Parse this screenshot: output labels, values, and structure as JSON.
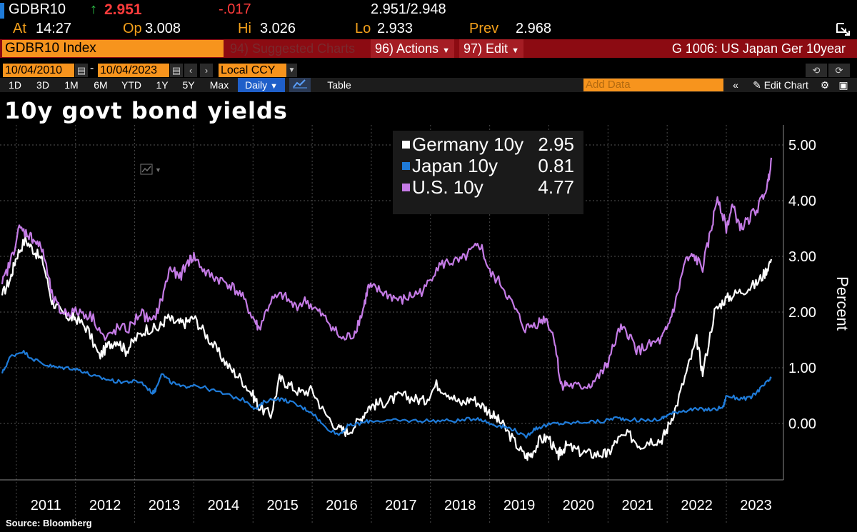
{
  "ticker": {
    "symbol": "GDBR10",
    "arrow": "↑",
    "last": "2.951",
    "change": "-.017",
    "bid_ask": "2.951/2.948",
    "at_label": "At",
    "time": "14:27",
    "open_label": "Op",
    "open": "3.008",
    "high_label": "Hi",
    "high": "3.026",
    "low_label": "Lo",
    "low": "2.933",
    "prev_label": "Prev",
    "prev": "2.968"
  },
  "toolbar": {
    "index_name": "GDBR10 Index",
    "suggested": "94) Suggested Charts",
    "actions": "96) Actions",
    "edit": "97) Edit",
    "chart_name": "G 1006: US Japan Ger 10year",
    "start_date": "10/04/2010",
    "end_date": "10/04/2023",
    "currency": "Local CCY",
    "periods": [
      "1D",
      "3D",
      "1M",
      "6M",
      "YTD",
      "1Y",
      "5Y",
      "Max"
    ],
    "frequency": "Daily",
    "table_label": "Table",
    "add_data_placeholder": "Add Data",
    "edit_chart": "Edit Chart"
  },
  "colors": {
    "germany": "#ffffff",
    "japan": "#1f7bd8",
    "us": "#c57be6",
    "accent": "#f7941d",
    "bar_red": "#8c0b12"
  },
  "chart_data": {
    "type": "line",
    "title": "10y govt bond yields",
    "ylabel": "Percent",
    "xlabel": "",
    "ylim": [
      -1.0,
      5.3
    ],
    "yticks": [
      "5.00",
      "4.00",
      "3.00",
      "2.00",
      "1.00",
      "0.00"
    ],
    "ytick_values": [
      5,
      4,
      3,
      2,
      1,
      0
    ],
    "xticks": [
      "2011",
      "2012",
      "2013",
      "2014",
      "2015",
      "2016",
      "2017",
      "2018",
      "2019",
      "2020",
      "2021",
      "2022",
      "2023"
    ],
    "xlim": [
      2010.76,
      2023.76
    ],
    "legend_position": "top-center",
    "series": [
      {
        "name": "Germany 10y",
        "last": "2.95",
        "color": "#ffffff",
        "x": [
          2010.76,
          2010.9,
          2011.0,
          2011.15,
          2011.3,
          2011.45,
          2011.6,
          2011.75,
          2011.9,
          2012.0,
          2012.2,
          2012.4,
          2012.55,
          2012.7,
          2012.85,
          2013.0,
          2013.2,
          2013.4,
          2013.55,
          2013.7,
          2013.85,
          2014.0,
          2014.2,
          2014.4,
          2014.6,
          2014.8,
          2015.0,
          2015.1,
          2015.3,
          2015.45,
          2015.6,
          2015.8,
          2016.0,
          2016.2,
          2016.45,
          2016.6,
          2016.8,
          2016.95,
          2017.1,
          2017.3,
          2017.5,
          2017.7,
          2017.9,
          2018.1,
          2018.3,
          2018.5,
          2018.7,
          2018.9,
          2019.05,
          2019.2,
          2019.4,
          2019.6,
          2019.7,
          2019.85,
          2020.0,
          2020.15,
          2020.2,
          2020.3,
          2020.5,
          2020.7,
          2020.9,
          2021.0,
          2021.15,
          2021.35,
          2021.55,
          2021.7,
          2021.9,
          2022.0,
          2022.15,
          2022.35,
          2022.5,
          2022.6,
          2022.8,
          2022.95,
          2023.1,
          2023.3,
          2023.5,
          2023.65,
          2023.76
        ],
        "values": [
          2.3,
          2.6,
          3.0,
          3.3,
          3.1,
          2.9,
          2.2,
          2.0,
          1.9,
          1.9,
          1.7,
          1.2,
          1.4,
          1.5,
          1.3,
          1.5,
          1.7,
          1.7,
          1.9,
          1.8,
          1.8,
          1.9,
          1.6,
          1.3,
          1.0,
          0.8,
          0.5,
          0.3,
          0.15,
          0.8,
          0.7,
          0.55,
          0.6,
          0.2,
          -0.1,
          -0.15,
          0.05,
          0.3,
          0.35,
          0.4,
          0.5,
          0.45,
          0.4,
          0.7,
          0.55,
          0.35,
          0.45,
          0.3,
          0.15,
          0.0,
          -0.3,
          -0.6,
          -0.55,
          -0.3,
          -0.25,
          -0.6,
          -0.5,
          -0.4,
          -0.5,
          -0.55,
          -0.55,
          -0.55,
          -0.3,
          -0.2,
          -0.4,
          -0.3,
          -0.3,
          -0.1,
          0.3,
          1.0,
          1.5,
          0.9,
          2.0,
          2.2,
          2.3,
          2.4,
          2.5,
          2.7,
          2.95
        ]
      },
      {
        "name": "Japan 10y",
        "last": "0.81",
        "color": "#1f7bd8",
        "x": [
          2010.76,
          2010.9,
          2011.1,
          2011.3,
          2011.5,
          2011.7,
          2011.9,
          2012.1,
          2012.3,
          2012.5,
          2012.7,
          2012.9,
          2013.1,
          2013.3,
          2013.35,
          2013.45,
          2013.6,
          2013.8,
          2014.0,
          2014.3,
          2014.6,
          2014.9,
          2015.05,
          2015.2,
          2015.4,
          2015.6,
          2015.8,
          2016.0,
          2016.2,
          2016.45,
          2016.6,
          2016.8,
          2017.0,
          2017.3,
          2017.6,
          2017.9,
          2018.2,
          2018.5,
          2018.8,
          2019.0,
          2019.2,
          2019.4,
          2019.6,
          2019.75,
          2019.9,
          2020.1,
          2020.3,
          2020.6,
          2020.9,
          2021.1,
          2021.3,
          2021.6,
          2021.9,
          2022.0,
          2022.2,
          2022.4,
          2022.6,
          2022.8,
          2022.95,
          2023.0,
          2023.2,
          2023.4,
          2023.55,
          2023.7,
          2023.76
        ],
        "values": [
          0.9,
          1.2,
          1.3,
          1.15,
          1.05,
          1.0,
          1.0,
          0.95,
          0.85,
          0.8,
          0.75,
          0.75,
          0.75,
          0.55,
          0.6,
          0.9,
          0.75,
          0.65,
          0.7,
          0.6,
          0.5,
          0.4,
          0.25,
          0.4,
          0.45,
          0.4,
          0.3,
          0.2,
          -0.05,
          -0.2,
          -0.05,
          0.0,
          0.05,
          0.05,
          0.05,
          0.05,
          0.05,
          0.05,
          0.1,
          0.0,
          -0.05,
          -0.1,
          -0.25,
          -0.1,
          -0.05,
          0.0,
          0.0,
          0.03,
          0.03,
          0.1,
          0.08,
          0.05,
          0.08,
          0.15,
          0.22,
          0.25,
          0.25,
          0.25,
          0.3,
          0.5,
          0.45,
          0.45,
          0.6,
          0.75,
          0.81
        ]
      },
      {
        "name": "U.S. 10y",
        "last": "4.77",
        "color": "#c57be6",
        "x": [
          2010.76,
          2010.9,
          2011.05,
          2011.2,
          2011.3,
          2011.45,
          2011.6,
          2011.75,
          2011.9,
          2012.1,
          2012.3,
          2012.5,
          2012.7,
          2012.9,
          2013.1,
          2013.3,
          2013.45,
          2013.6,
          2013.75,
          2013.9,
          2014.0,
          2014.2,
          2014.4,
          2014.6,
          2014.8,
          2015.0,
          2015.1,
          2015.3,
          2015.5,
          2015.7,
          2015.9,
          2016.1,
          2016.3,
          2016.5,
          2016.7,
          2016.85,
          2016.95,
          2017.1,
          2017.3,
          2017.5,
          2017.7,
          2017.9,
          2018.1,
          2018.3,
          2018.5,
          2018.7,
          2018.85,
          2019.0,
          2019.2,
          2019.4,
          2019.6,
          2019.8,
          2019.95,
          2020.1,
          2020.2,
          2020.3,
          2020.5,
          2020.7,
          2020.9,
          2021.0,
          2021.2,
          2021.35,
          2021.5,
          2021.7,
          2021.9,
          2022.0,
          2022.15,
          2022.3,
          2022.45,
          2022.6,
          2022.75,
          2022.85,
          2023.0,
          2023.1,
          2023.25,
          2023.4,
          2023.55,
          2023.7,
          2023.76
        ],
        "values": [
          2.5,
          2.9,
          3.5,
          3.4,
          3.3,
          3.1,
          2.3,
          2.0,
          2.0,
          2.0,
          1.9,
          1.5,
          1.7,
          1.7,
          2.0,
          1.8,
          2.2,
          2.8,
          2.6,
          2.9,
          3.0,
          2.7,
          2.6,
          2.5,
          2.3,
          1.9,
          1.7,
          2.2,
          2.3,
          2.1,
          2.2,
          2.0,
          1.8,
          1.5,
          1.6,
          2.0,
          2.45,
          2.4,
          2.3,
          2.2,
          2.3,
          2.4,
          2.8,
          2.9,
          2.9,
          3.1,
          3.2,
          2.7,
          2.5,
          2.1,
          1.7,
          1.8,
          1.9,
          1.5,
          0.7,
          0.7,
          0.65,
          0.7,
          0.9,
          1.1,
          1.7,
          1.6,
          1.3,
          1.4,
          1.5,
          1.7,
          2.2,
          2.9,
          3.0,
          2.8,
          3.5,
          4.1,
          3.5,
          3.9,
          3.5,
          3.7,
          3.9,
          4.3,
          4.77
        ]
      }
    ]
  },
  "source": "Source: Bloomberg"
}
